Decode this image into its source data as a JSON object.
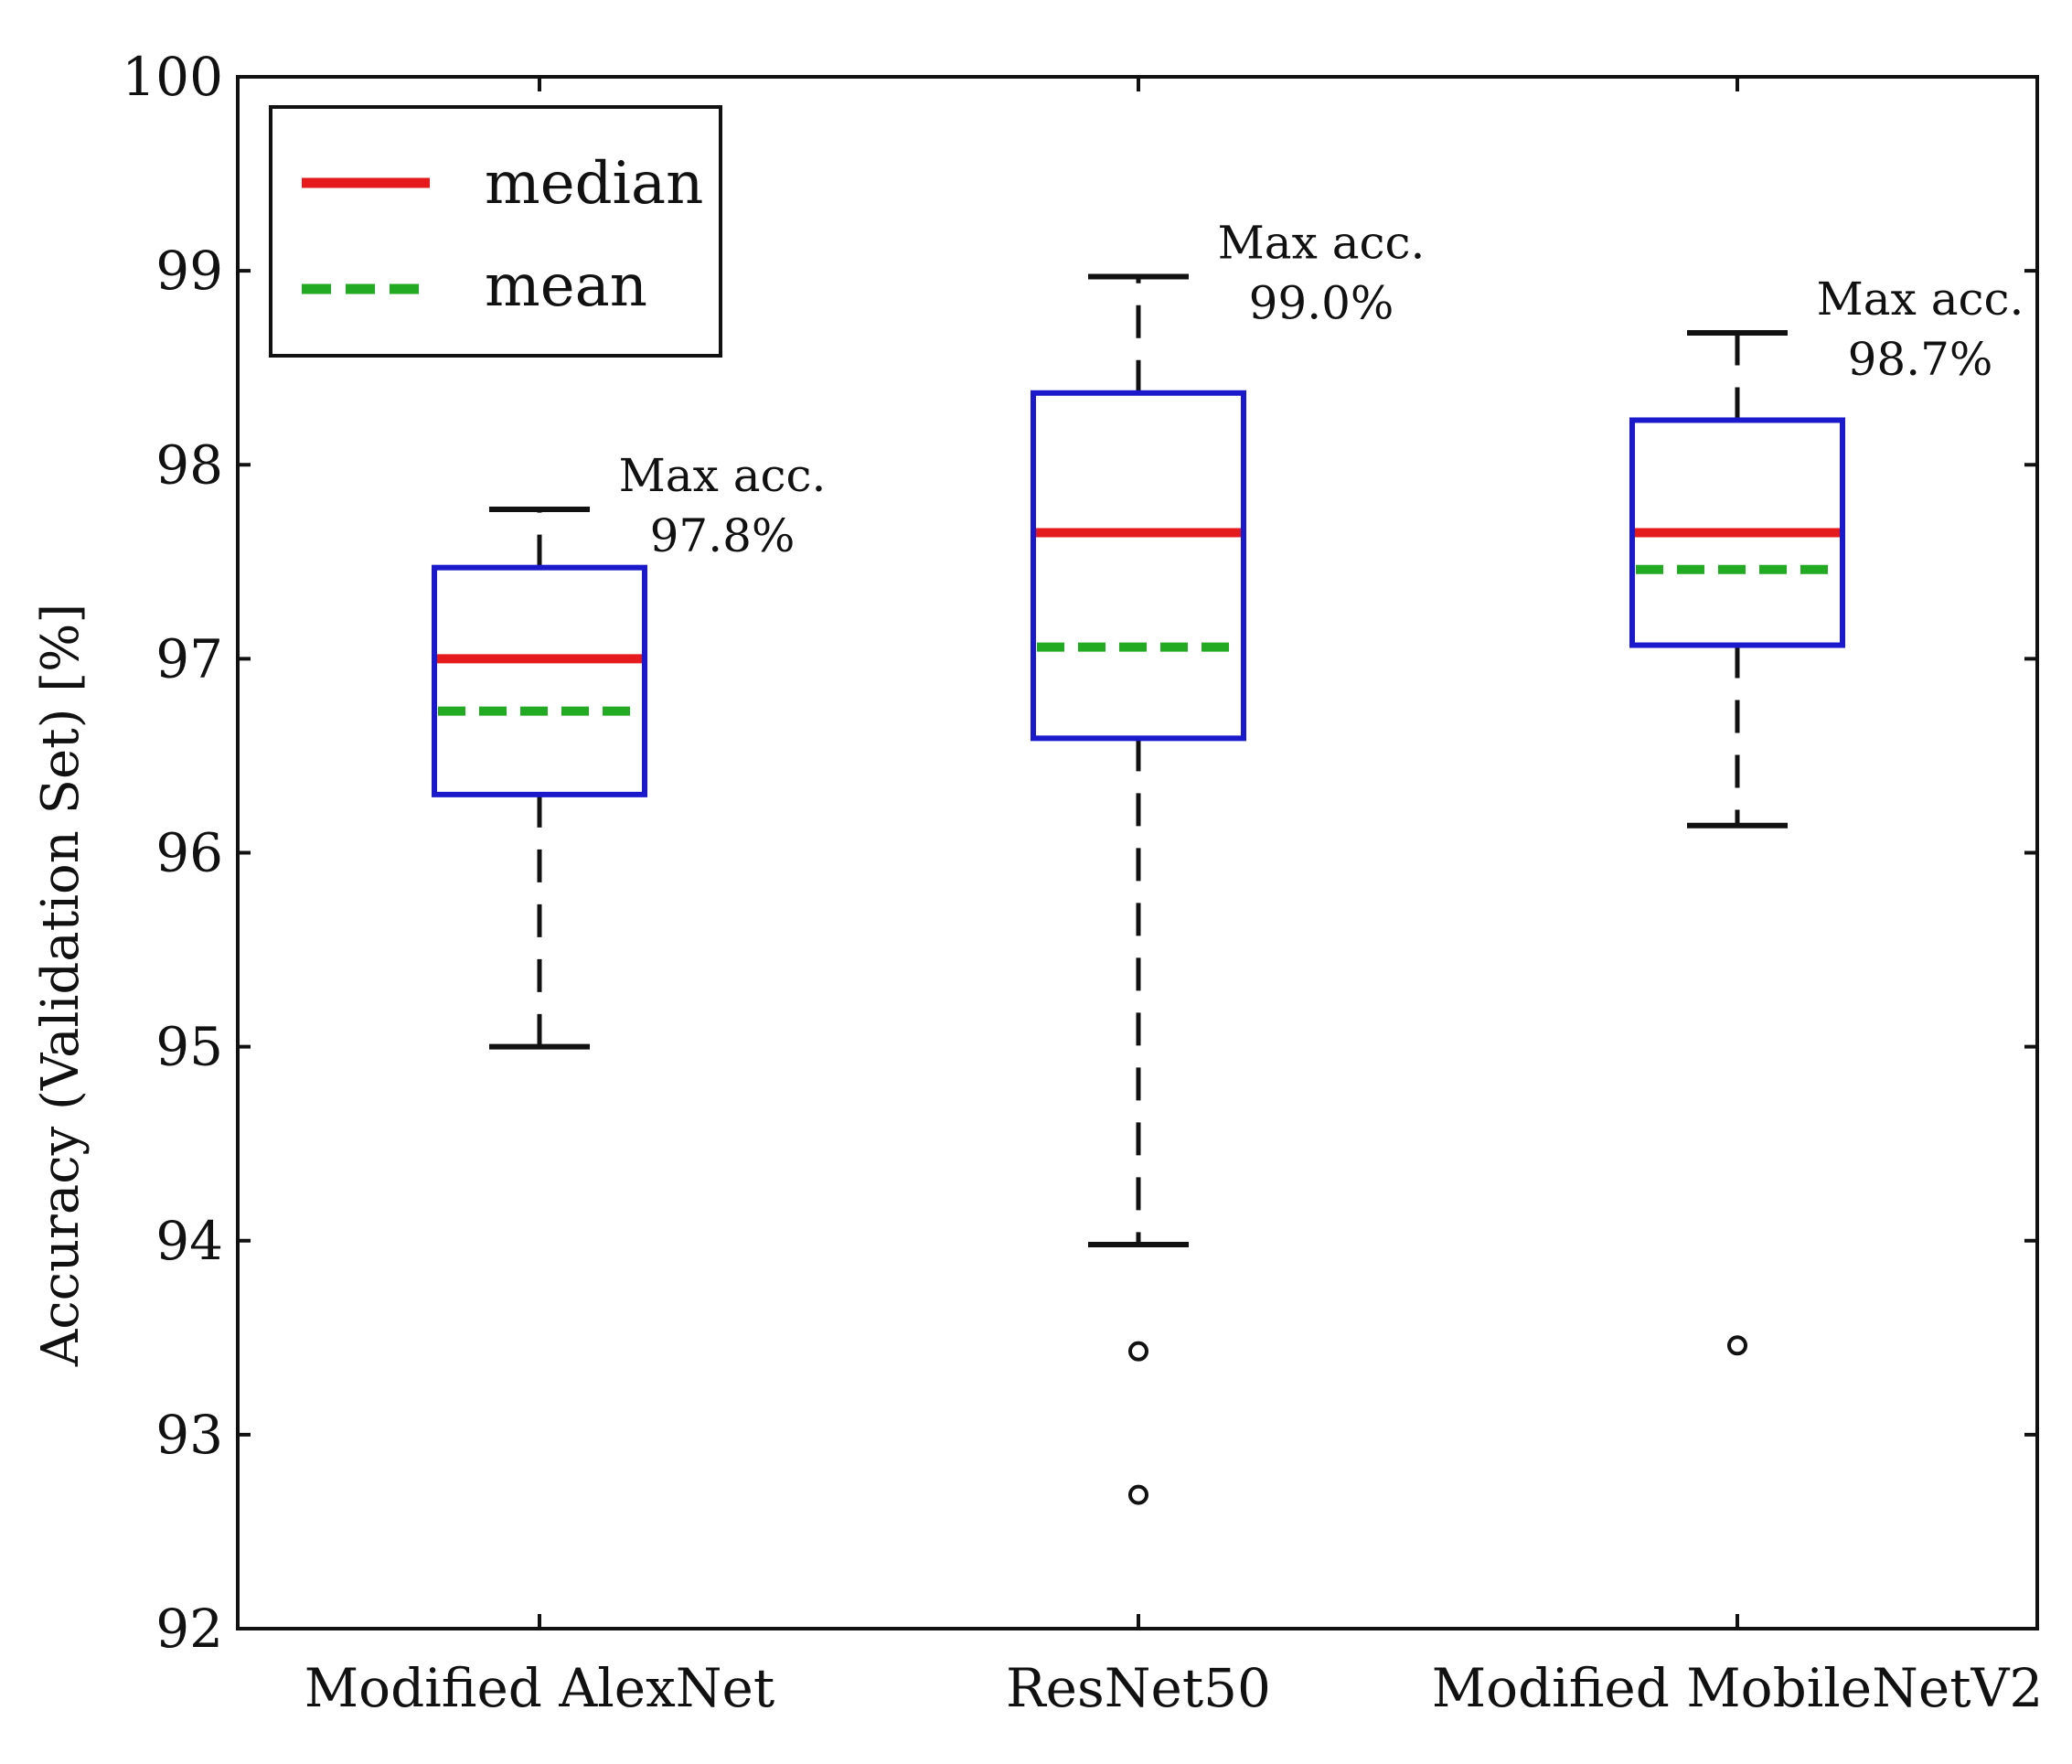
{
  "chart_data": {
    "type": "box",
    "ylabel": "Accuracy (Validation Set) [%]",
    "ylim": [
      92,
      100
    ],
    "yticks": [
      "92",
      "93",
      "94",
      "95",
      "96",
      "97",
      "98",
      "99",
      "100"
    ],
    "categories": [
      "Modified AlexNet",
      "ResNet50",
      "Modified MobileNetV2"
    ],
    "legend": {
      "placement": "top-left",
      "entries": [
        {
          "label": "median",
          "color": "#e41a1c",
          "style": "solid"
        },
        {
          "label": "mean",
          "color": "#22aa22",
          "style": "dashed"
        }
      ]
    },
    "series": [
      {
        "category": "Modified AlexNet",
        "whisker_low": 95.0,
        "q1": 96.3,
        "median": 97.0,
        "mean": 96.73,
        "q3": 97.47,
        "whisker_high": 97.77,
        "outliers": [],
        "annotation_line1": "Max acc.",
        "annotation_line2": "97.8%"
      },
      {
        "category": "ResNet50",
        "whisker_low": 93.98,
        "q1": 96.59,
        "median": 97.65,
        "mean": 97.06,
        "q3": 98.37,
        "whisker_high": 98.97,
        "outliers": [
          93.43,
          92.69
        ],
        "annotation_line1": "Max acc.",
        "annotation_line2": "99.0%"
      },
      {
        "category": "Modified MobileNetV2",
        "whisker_low": 96.14,
        "q1": 97.07,
        "median": 97.65,
        "mean": 97.46,
        "q3": 98.23,
        "whisker_high": 98.68,
        "outliers": [
          93.46
        ],
        "annotation_line1": "Max acc.",
        "annotation_line2": "98.7%"
      }
    ],
    "colors": {
      "box": "#1a1acc",
      "median": "#e41a1c",
      "mean": "#22aa22",
      "whisker": "#111111",
      "axis": "#111111"
    }
  }
}
